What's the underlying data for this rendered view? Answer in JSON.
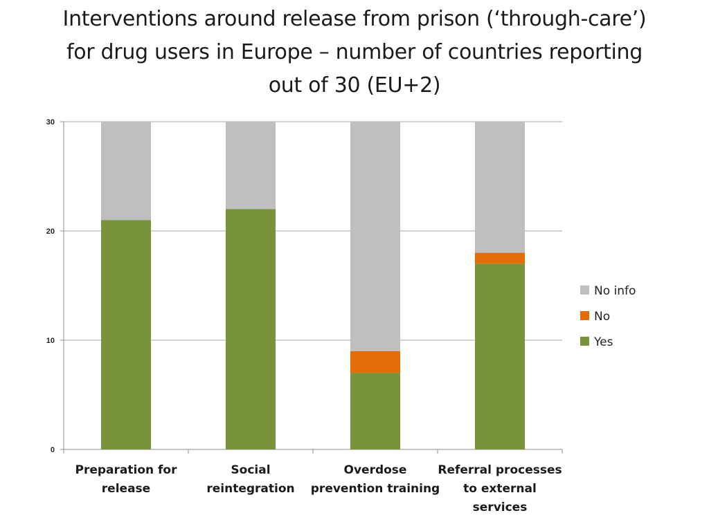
{
  "title_lines": [
    "Interventions around release from prison (‘through-care’)",
    "for drug users in Europe – number of countries reporting",
    "out of 30 (EU+2)"
  ],
  "chart_data": {
    "type": "bar",
    "stacked": true,
    "categories": [
      [
        "Preparation for",
        "release"
      ],
      [
        "Social",
        "reintegration"
      ],
      [
        "Overdose",
        "prevention training"
      ],
      [
        "Referral processes",
        "to external",
        "services"
      ]
    ],
    "series": [
      {
        "name": "Yes",
        "color": "#77933c",
        "values": [
          21,
          22,
          7,
          17
        ]
      },
      {
        "name": "No",
        "color": "#e36c09",
        "values": [
          0,
          0,
          2,
          1
        ]
      },
      {
        "name": "No info",
        "color": "#bfbfbf",
        "values": [
          9,
          8,
          21,
          12
        ]
      }
    ],
    "ylim": [
      0,
      30
    ],
    "yticks": [
      "0",
      "10",
      "20",
      "30"
    ],
    "grid": true,
    "legend_position": "right",
    "legend_order": [
      "No info",
      "No",
      "Yes"
    ]
  }
}
